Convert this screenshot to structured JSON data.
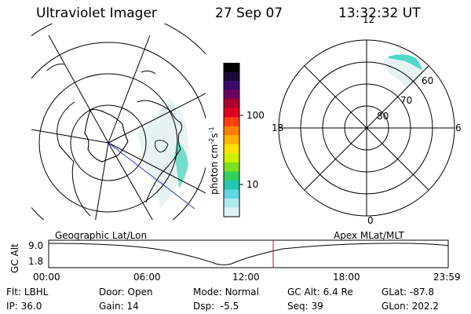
{
  "header": {
    "instrument": "Ultraviolet Imager",
    "date": "27 Sep 07",
    "time": "13:32:32 UT"
  },
  "geo_panel": {
    "label": "Geographic Lat/Lon"
  },
  "colorbar": {
    "unit_prefix": "photon cm",
    "unit_exp1": "-2",
    "unit_mid": "s",
    "unit_exp2": "-1",
    "ticks": [
      "100",
      "10"
    ],
    "colors": [
      "#000000",
      "#1a0a3a",
      "#3c0a6a",
      "#700060",
      "#b00030",
      "#e00020",
      "#ff4010",
      "#ff8000",
      "#ffb000",
      "#ffe000",
      "#d0f000",
      "#80e020",
      "#30d060",
      "#20c8b0",
      "#60d8e0",
      "#b0e8f0",
      "#e0f4f8"
    ]
  },
  "polar_panel": {
    "label": "Apex MLat/MLT",
    "mlt_labels": {
      "top": "12",
      "bottom": "0",
      "left": "18",
      "right": "6"
    },
    "lat_labels": [
      "60",
      "70",
      "80"
    ]
  },
  "alt_plot": {
    "ylabel": "GC Alt",
    "yticks": [
      "9.0",
      "1.8"
    ],
    "xticks": [
      "00:00",
      "06:00",
      "12:00",
      "18:00",
      "23:59"
    ]
  },
  "status": {
    "row1": [
      {
        "label": "Flt:",
        "value": "LBHL"
      },
      {
        "label": "Door:",
        "value": "Open"
      },
      {
        "label": "Mode:",
        "value": "Normal"
      },
      {
        "label": "GC Alt:",
        "value": "6.4 Re"
      },
      {
        "label": "GLat:",
        "value": "-87.8"
      }
    ],
    "row2": [
      {
        "label": "IP:",
        "value": "36.0"
      },
      {
        "label": "Gain:",
        "value": "14"
      },
      {
        "label": "Dsp:",
        "value": "-5.5"
      },
      {
        "label": "Seq:",
        "value": "39"
      },
      {
        "label": "GLon:",
        "value": "202.2"
      }
    ]
  }
}
